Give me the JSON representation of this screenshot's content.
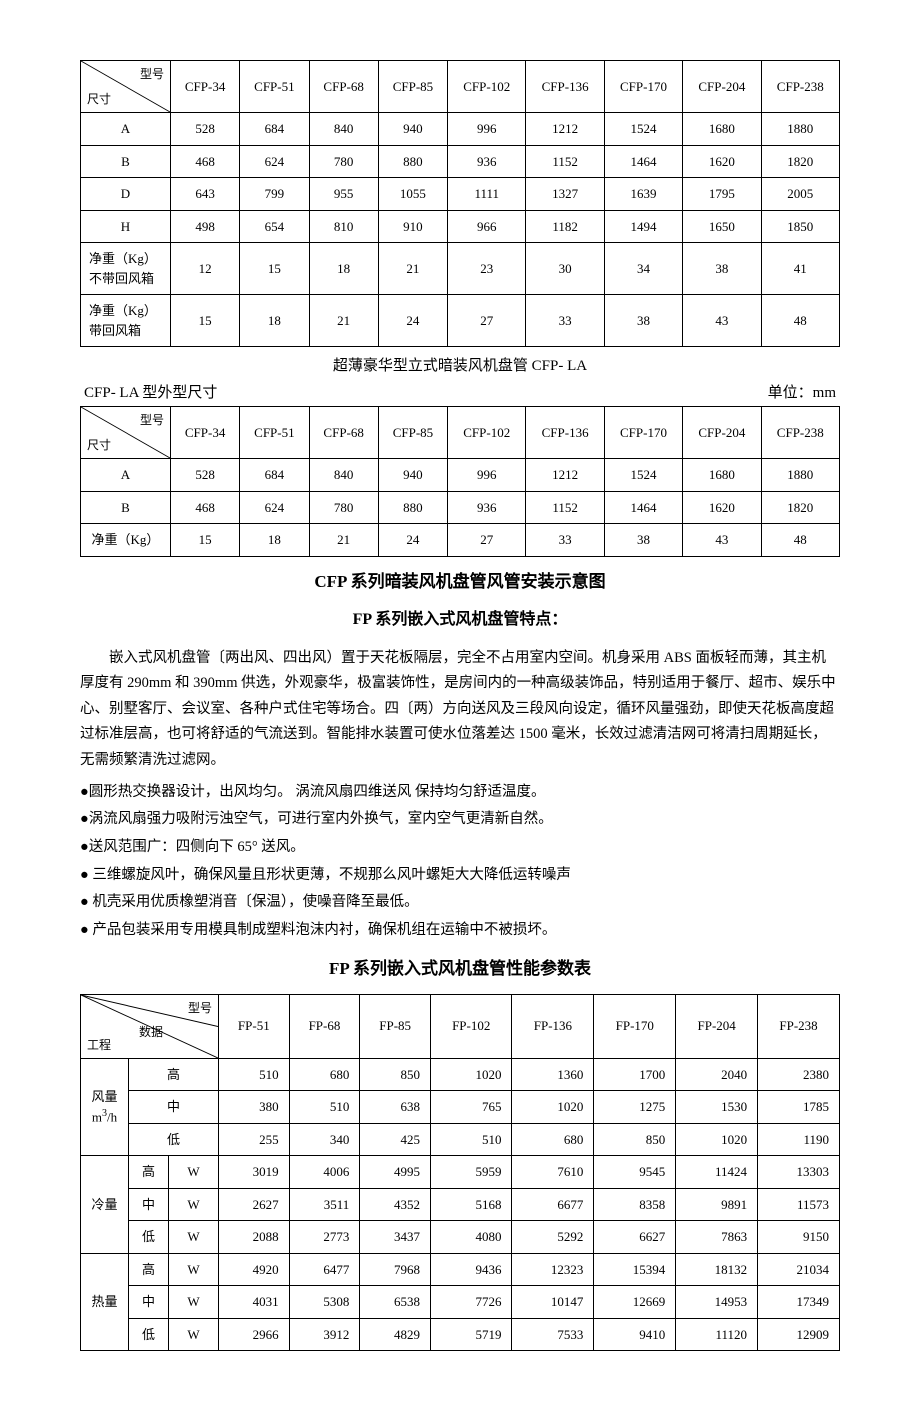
{
  "table1": {
    "diag_top": "型号",
    "diag_bot": "尺寸",
    "cols": [
      "CFP-34",
      "CFP-51",
      "CFP-68",
      "CFP-85",
      "CFP-102",
      "CFP-136",
      "CFP-170",
      "CFP-204",
      "CFP-238"
    ],
    "rows": [
      {
        "label": "A",
        "vals": [
          "528",
          "684",
          "840",
          "940",
          "996",
          "1212",
          "1524",
          "1680",
          "1880"
        ]
      },
      {
        "label": "B",
        "vals": [
          "468",
          "624",
          "780",
          "880",
          "936",
          "1152",
          "1464",
          "1620",
          "1820"
        ]
      },
      {
        "label": "D",
        "vals": [
          "643",
          "799",
          "955",
          "1055",
          "1111",
          "1327",
          "1639",
          "1795",
          "2005"
        ]
      },
      {
        "label": "H",
        "vals": [
          "498",
          "654",
          "810",
          "910",
          "966",
          "1182",
          "1494",
          "1650",
          "1850"
        ]
      },
      {
        "label": "净重（Kg）\n不带回风箱",
        "multiline": true,
        "vals": [
          "12",
          "15",
          "18",
          "21",
          "23",
          "30",
          "34",
          "38",
          "41"
        ]
      },
      {
        "label": "净重（Kg）\n带回风箱",
        "multiline": true,
        "vals": [
          "15",
          "18",
          "21",
          "24",
          "27",
          "33",
          "38",
          "43",
          "48"
        ]
      }
    ]
  },
  "mid_title": "超薄豪华型立式暗装风机盘管 CFP- LA",
  "label_left": "CFP- LA 型外型尺寸",
  "label_right": "单位：mm",
  "table2": {
    "diag_top": "型号",
    "diag_bot": "尺寸",
    "cols": [
      "CFP-34",
      "CFP-51",
      "CFP-68",
      "CFP-85",
      "CFP-102",
      "CFP-136",
      "CFP-170",
      "CFP-204",
      "CFP-238"
    ],
    "rows": [
      {
        "label": "A",
        "vals": [
          "528",
          "684",
          "840",
          "940",
          "996",
          "1212",
          "1524",
          "1680",
          "1880"
        ]
      },
      {
        "label": "B",
        "vals": [
          "468",
          "624",
          "780",
          "880",
          "936",
          "1152",
          "1464",
          "1620",
          "1820"
        ]
      },
      {
        "label": "净重（Kg）",
        "vals": [
          "15",
          "18",
          "21",
          "24",
          "27",
          "33",
          "38",
          "43",
          "48"
        ]
      }
    ]
  },
  "h1": "CFP 系列暗装风机盘管风管安装示意图",
  "h2": "FP 系列嵌入式风机盘管特点：",
  "para": "嵌入式风机盘管〔两出风、四出风）置于天花板隔层，完全不占用室内空间。机身采用 ABS 面板轻而薄，其主机厚度有 290mm 和 390mm 供选，外观豪华，极富装饰性，是房间内的一种高级装饰品，特别适用于餐厅、超市、娱乐中心、别墅客厅、会议室、各种户式住宅等场合。四〔两）方向送风及三段风向设定，循环风量强劲，即使天花板高度超过标准层高，也可将舒适的气流送到。智能排水装置可使水位落差达 1500 毫米，长效过滤清洁网可将清扫周期延长，无需频繁清洗过滤网。",
  "bullets": [
    "●圆形热交换器设计，出风均匀。  涡流风扇四维送风 保持均匀舒适温度。",
    "●涡流风扇强力吸附污浊空气，可进行室内外换气，室内空气更清新自然。",
    "●送风范围广：四侧向下 65° 送风。",
    "●  三维螺旋风叶，确保风量且形状更薄，不规那么风叶螺矩大大降低运转噪声",
    "●  机壳采用优质橡塑消音〔保温），使噪音降至最低。",
    "●  产品包装采用专用模具制成塑料泡沫内衬，确保机组在运输中不被损坏。"
  ],
  "h3": "FP 系列嵌入式风机盘管性能参数表",
  "table3": {
    "diag_top": "型号",
    "diag_mid": "数据",
    "diag_bot": "工程",
    "cols": [
      "FP-51",
      "FP-68",
      "FP-85",
      "FP-102",
      "FP-136",
      "FP-170",
      "FP-204",
      "FP-238"
    ],
    "groups": [
      {
        "glabel_html": "风量<br>m<sup>3</sup>/h",
        "sub": [
          {
            "l": "高",
            "u": "",
            "vals": [
              "510",
              "680",
              "850",
              "1020",
              "1360",
              "1700",
              "2040",
              "2380"
            ]
          },
          {
            "l": "中",
            "u": "",
            "vals": [
              "380",
              "510",
              "638",
              "765",
              "1020",
              "1275",
              "1530",
              "1785"
            ]
          },
          {
            "l": "低",
            "u": "",
            "vals": [
              "255",
              "340",
              "425",
              "510",
              "680",
              "850",
              "1020",
              "1190"
            ]
          }
        ],
        "merged_lu": true
      },
      {
        "glabel_html": "冷量",
        "sub": [
          {
            "l": "高",
            "u": "W",
            "vals": [
              "3019",
              "4006",
              "4995",
              "5959",
              "7610",
              "9545",
              "11424",
              "13303"
            ]
          },
          {
            "l": "中",
            "u": "W",
            "vals": [
              "2627",
              "3511",
              "4352",
              "5168",
              "6677",
              "8358",
              "9891",
              "11573"
            ]
          },
          {
            "l": "低",
            "u": "W",
            "vals": [
              "2088",
              "2773",
              "3437",
              "4080",
              "5292",
              "6627",
              "7863",
              "9150"
            ]
          }
        ]
      },
      {
        "glabel_html": "热量",
        "sub": [
          {
            "l": "高",
            "u": "W",
            "vals": [
              "4920",
              "6477",
              "7968",
              "9436",
              "12323",
              "15394",
              "18132",
              "21034"
            ]
          },
          {
            "l": "中",
            "u": "W",
            "vals": [
              "4031",
              "5308",
              "6538",
              "7726",
              "10147",
              "12669",
              "14953",
              "17349"
            ]
          },
          {
            "l": "低",
            "u": "W",
            "vals": [
              "2966",
              "3912",
              "4829",
              "5719",
              "7533",
              "9410",
              "11120",
              "12909"
            ]
          }
        ]
      }
    ]
  }
}
